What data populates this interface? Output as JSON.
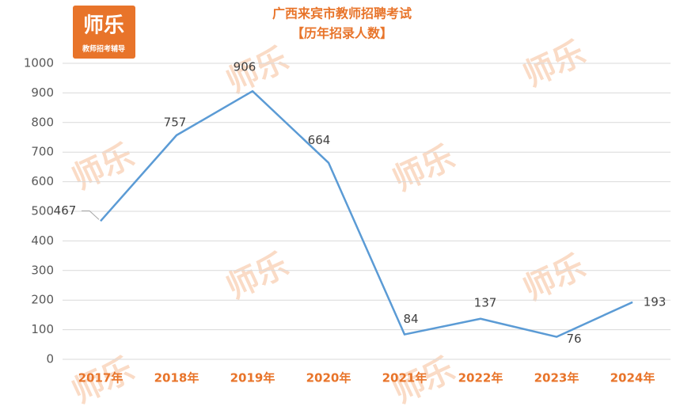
{
  "logo": {
    "name": "师乐",
    "tagline": "教师招考辅导"
  },
  "watermark": "师乐",
  "chart_data": {
    "type": "line",
    "title": "广西来宾市教师招聘考试",
    "subtitle": "【历年招录人数】",
    "categories": [
      "2017年",
      "2018年",
      "2019年",
      "2020年",
      "2021年",
      "2022年",
      "2023年",
      "2024年"
    ],
    "values": [
      467,
      757,
      906,
      664,
      84,
      137,
      76,
      193
    ],
    "color": "#5b9bd5",
    "ylim": [
      0,
      1000
    ],
    "yticks": [
      0,
      100,
      200,
      300,
      400,
      500,
      600,
      700,
      800,
      900,
      1000
    ],
    "grid": true
  }
}
